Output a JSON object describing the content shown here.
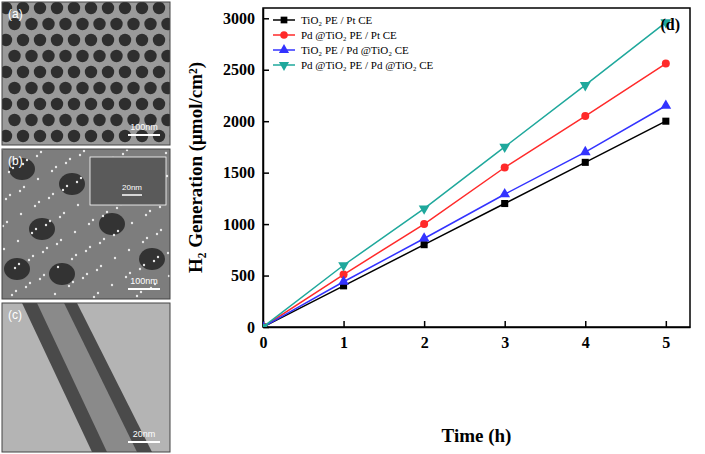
{
  "chart_data": {
    "type": "line",
    "annotations": [
      "(d)"
    ],
    "x_label": "Time (h)",
    "y_label": "H₂ Generation (μmol/cm²)",
    "x": [
      0,
      1,
      2,
      3,
      4,
      5
    ],
    "series": [
      {
        "name": "TiO₂ PE / Pt CE",
        "color": "#000000",
        "marker": "square",
        "line_style": "solid",
        "values": [
          0,
          400,
          800,
          1200,
          1600,
          2000
        ]
      },
      {
        "name": "Pd @TiO₂ PE / Pt CE",
        "color": "#ff2a2a",
        "marker": "circle",
        "line_style": "solid",
        "values": [
          0,
          510,
          1000,
          1550,
          2050,
          2560
        ]
      },
      {
        "name": "TiO₂ PE / Pd @TiO₂ CE",
        "color": "#3333ff",
        "marker": "triangle-up",
        "line_style": "solid",
        "values": [
          0,
          440,
          860,
          1290,
          1700,
          2150
        ]
      },
      {
        "name": "Pd @TiO₂ PE / Pd @TiO₂ CE",
        "color": "#1fa89c",
        "marker": "triangle-down",
        "line_style": "solid",
        "values": [
          0,
          600,
          1150,
          1750,
          2350,
          2960
        ]
      }
    ],
    "xlim": [
      0,
      5.3
    ],
    "xticks": [
      0,
      1,
      2,
      3,
      4,
      5
    ],
    "ylim": [
      0,
      3100
    ],
    "yticks": [
      0,
      500,
      1000,
      1500,
      2000,
      2500,
      3000
    ],
    "grid": false,
    "legend": "upper left"
  },
  "micrographs": [
    {
      "label": "(a)",
      "scale_bar": "100nm"
    },
    {
      "label": "(b)",
      "scale_bar": "100nm",
      "inset_scale_bar": "20nm"
    },
    {
      "label": "(c)",
      "scale_bar": "20nm"
    }
  ]
}
